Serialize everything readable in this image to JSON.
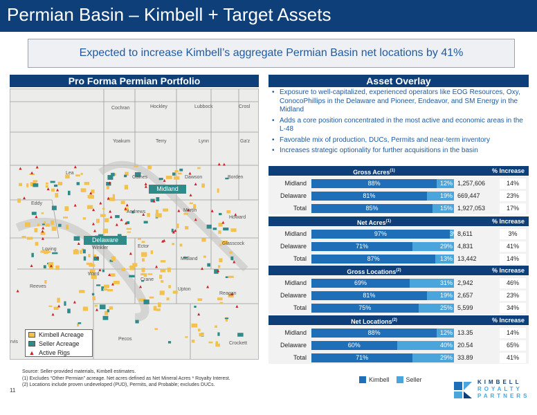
{
  "page": {
    "title": "Permian Basin – Kimbell + Target Assets",
    "callout": "Expected to increase Kimbell’s aggregate Permian Basin net locations by 41%",
    "page_number": "11"
  },
  "left_panel": {
    "header": "Pro Forma Permian Portfolio",
    "map": {
      "counties": [
        "Cochran",
        "Hockley",
        "Lubbock",
        "Crosl",
        "Yoakum",
        "Terry",
        "Lynn",
        "Ga'z",
        "Lea",
        "Gaines",
        "Dawson",
        "Borden",
        "Eddy",
        "Andrews",
        "Martin",
        "Howard",
        "Loving",
        "Winkler",
        "Ector",
        "Midland",
        "Glasscock",
        "Reeves",
        "Ward",
        "Crane",
        "Upton",
        "Reagan",
        "Pecos",
        "Crockett",
        "rvis"
      ],
      "region_labels": {
        "midland": "Midland",
        "delaware": "Delaware"
      },
      "legend": [
        {
          "label": "Kimbell Acreage",
          "color": "#f2c14e"
        },
        {
          "label": "Seller Acreage",
          "color": "#2f8a8a"
        },
        {
          "label": "Active Rigs",
          "color": "#cc2222"
        }
      ]
    }
  },
  "right_panel": {
    "header": "Asset Overlay",
    "bullets": [
      "Exposure to well-capitalized, experienced operators like EOG Resources, Oxy, ConocoPhillips in the Delaware and Pioneer, Endeavor, and SM Energy in the Midland",
      "Adds a core position concentrated in the most active and economic areas in the L-48",
      "Favorable mix of production, DUCs, Permits and near-term inventory",
      "Increases strategic optionality for further acquisitions in the basin"
    ],
    "increase_label": "% Increase",
    "tables": [
      {
        "title": "Gross Acres",
        "sup": "(1)",
        "rows": [
          {
            "label": "Midland",
            "kimbell": "88%",
            "seller": "12%",
            "value": "1,257,606",
            "increase": "14%"
          },
          {
            "label": "Delaware",
            "kimbell": "81%",
            "seller": "19%",
            "value": "669,447",
            "increase": "23%"
          },
          {
            "label": "Total",
            "kimbell": "85%",
            "seller": "15%",
            "value": "1,927,053",
            "increase": "17%"
          }
        ]
      },
      {
        "title": "Net Acres",
        "sup": "(1)",
        "rows": [
          {
            "label": "Midland",
            "kimbell": "97%",
            "seller": "3%",
            "value": "8,611",
            "increase": "3%"
          },
          {
            "label": "Delaware",
            "kimbell": "71%",
            "seller": "29%",
            "value": "4,831",
            "increase": "41%"
          },
          {
            "label": "Total",
            "kimbell": "87%",
            "seller": "13%",
            "value": "13,442",
            "increase": "14%"
          }
        ]
      },
      {
        "title": "Gross Locations",
        "sup": "(2)",
        "rows": [
          {
            "label": "Midland",
            "kimbell": "69%",
            "seller": "31%",
            "value": "2,942",
            "increase": "46%"
          },
          {
            "label": "Delaware",
            "kimbell": "81%",
            "seller": "19%",
            "value": "2,657",
            "increase": "23%"
          },
          {
            "label": "Total",
            "kimbell": "75%",
            "seller": "25%",
            "value": "5,599",
            "increase": "34%"
          }
        ]
      },
      {
        "title": "Net Locations",
        "sup": "(2)",
        "rows": [
          {
            "label": "Midland",
            "kimbell": "88%",
            "seller": "12%",
            "value": "13.35",
            "increase": "14%"
          },
          {
            "label": "Delaware",
            "kimbell": "60%",
            "seller": "40%",
            "value": "20.54",
            "increase": "65%"
          },
          {
            "label": "Total",
            "kimbell": "71%",
            "seller": "29%",
            "value": "33.89",
            "increase": "41%"
          }
        ]
      }
    ],
    "bar_legend": {
      "kimbell": "Kimbell",
      "seller": "Seller",
      "kimbell_color": "#1f6fb8",
      "seller_color": "#4aa5dd"
    }
  },
  "footnotes": [
    "Source: Seller-provided materials, Kimbell estimates.",
    "(1)  Excludes “Other Permian” acreage. Net acres defined as Net Mineral Acres * Royalty Interest.",
    "(2)  Locations include proven undeveloped (PUD), Permits, and Probable; excludes DUCs."
  ],
  "logo": {
    "lines": [
      "KIMBELL",
      "ROYALTY",
      "PARTNERS"
    ]
  }
}
